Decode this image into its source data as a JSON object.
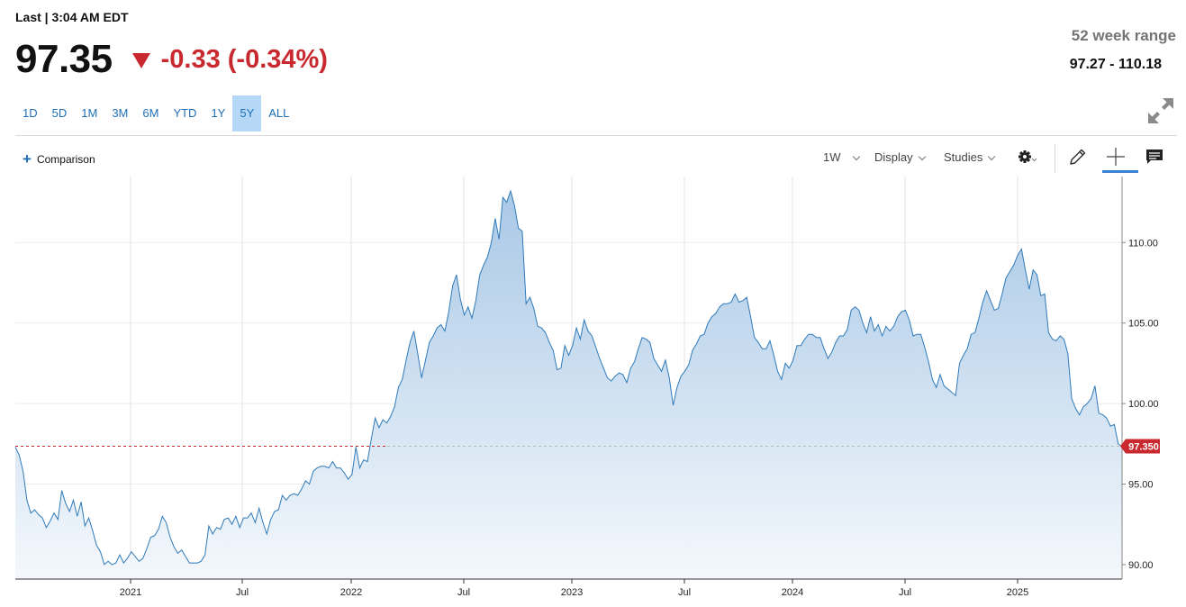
{
  "header": {
    "last_label": "Last | 3:04 AM EDT",
    "price": "97.35",
    "change": "-0.33 (-0.34%)",
    "direction": "down",
    "range_label": "52 week range",
    "range_value": "97.27 - 110.18"
  },
  "periods": [
    {
      "label": "1D",
      "active": false
    },
    {
      "label": "5D",
      "active": false
    },
    {
      "label": "1M",
      "active": false
    },
    {
      "label": "3M",
      "active": false
    },
    {
      "label": "6M",
      "active": false
    },
    {
      "label": "YTD",
      "active": false
    },
    {
      "label": "1Y",
      "active": false
    },
    {
      "label": "5Y",
      "active": true
    },
    {
      "label": "ALL",
      "active": false
    }
  ],
  "toolbar": {
    "comparison_label": "Comparison",
    "interval_label": "1W",
    "display_label": "Display",
    "studies_label": "Studies",
    "icons": [
      "settings-icon",
      "pencil-icon",
      "crosshair-icon",
      "comment-icon",
      "expand-icon"
    ]
  },
  "colors": {
    "line": "#2f7ab9",
    "fill_top": "#a9c8e6",
    "fill_bottom": "#f4f8fc",
    "down": "#c9282e",
    "accent": "#1f6fb5"
  },
  "chart_data": {
    "type": "area",
    "x_start": "2020-06-19",
    "x_interval": "1W",
    "x_ticks": [
      "2021",
      "Jul",
      "2022",
      "Jul",
      "2023",
      "Jul",
      "2024",
      "Jul",
      "2025"
    ],
    "y_ticks": [
      "90.00",
      "95.00",
      "100.00",
      "105.00",
      "110.00"
    ],
    "ylim": [
      89.1,
      114.1
    ],
    "last_value_label": "97.350",
    "last_value": 97.35,
    "grid": true,
    "values": [
      97.3,
      96.8,
      95.8,
      94.0,
      93.2,
      93.4,
      93.1,
      92.9,
      92.3,
      92.7,
      93.2,
      92.8,
      94.6,
      93.8,
      93.3,
      94.0,
      93.0,
      93.9,
      92.4,
      92.9,
      92.1,
      91.2,
      90.8,
      90.0,
      90.2,
      90.0,
      90.1,
      90.6,
      90.1,
      90.4,
      90.8,
      90.5,
      90.2,
      90.4,
      91.0,
      91.7,
      91.8,
      92.2,
      93.0,
      92.6,
      91.7,
      91.1,
      90.7,
      90.9,
      90.5,
      90.1,
      90.1,
      90.1,
      90.2,
      90.6,
      92.4,
      91.9,
      92.3,
      92.2,
      92.8,
      92.9,
      92.5,
      93.0,
      92.3,
      92.9,
      92.9,
      93.2,
      92.6,
      93.5,
      92.6,
      91.9,
      92.8,
      93.3,
      93.4,
      94.3,
      94.0,
      94.3,
      94.4,
      94.3,
      94.7,
      95.2,
      95.0,
      95.8,
      96.0,
      96.1,
      96.1,
      96.0,
      96.4,
      96.0,
      96.0,
      95.7,
      95.3,
      95.6,
      97.3,
      96.0,
      96.5,
      96.4,
      97.8,
      99.1,
      98.5,
      99.0,
      98.8,
      99.2,
      99.8,
      101.0,
      101.5,
      102.7,
      103.8,
      104.5,
      103.1,
      101.6,
      102.7,
      103.8,
      104.2,
      104.7,
      104.9,
      104.5,
      105.7,
      107.3,
      108.0,
      106.5,
      105.5,
      106.0,
      105.3,
      106.4,
      108.0,
      108.6,
      109.1,
      110.0,
      111.5,
      110.2,
      112.8,
      112.5,
      113.2,
      112.3,
      110.9,
      110.7,
      106.2,
      106.6,
      105.9,
      104.8,
      104.7,
      104.4,
      103.8,
      103.3,
      102.1,
      102.2,
      103.6,
      103.0,
      103.6,
      104.7,
      104.0,
      105.2,
      104.5,
      104.2,
      103.5,
      102.8,
      102.2,
      101.6,
      101.4,
      101.7,
      101.9,
      101.8,
      101.3,
      102.2,
      102.6,
      103.4,
      104.1,
      104.0,
      103.8,
      102.8,
      102.4,
      102.0,
      102.7,
      101.6,
      99.9,
      101.0,
      101.7,
      102.0,
      102.4,
      103.3,
      103.7,
      104.2,
      104.3,
      105.0,
      105.4,
      105.6,
      106.0,
      106.2,
      106.2,
      106.3,
      106.8,
      106.3,
      106.4,
      106.6,
      105.4,
      104.1,
      103.8,
      103.4,
      103.4,
      103.9,
      103.0,
      102.0,
      101.5,
      102.5,
      102.2,
      102.7,
      103.6,
      103.6,
      104.0,
      104.3,
      104.3,
      104.1,
      104.1,
      103.4,
      102.8,
      103.2,
      103.8,
      104.2,
      104.2,
      104.6,
      105.8,
      106.0,
      105.8,
      105.0,
      104.4,
      105.4,
      104.5,
      104.9,
      104.2,
      104.8,
      104.5,
      104.8,
      105.4,
      105.7,
      105.8,
      105.2,
      104.2,
      104.3,
      104.3,
      103.5,
      102.6,
      101.5,
      101.0,
      101.8,
      101.1,
      100.9,
      100.7,
      100.5,
      102.5,
      103.0,
      103.4,
      104.3,
      104.4,
      105.3,
      106.3,
      107.0,
      106.4,
      105.8,
      105.9,
      106.8,
      107.8,
      108.2,
      108.6,
      109.2,
      109.6,
      108.3,
      107.1,
      108.3,
      108.0,
      106.7,
      106.8,
      104.4,
      104.0,
      103.9,
      104.2,
      104.0,
      103.1,
      100.3,
      99.7,
      99.3,
      99.8,
      100.0,
      100.3,
      101.1,
      99.4,
      99.3,
      99.1,
      98.6,
      98.7,
      97.5,
      97.35
    ]
  }
}
